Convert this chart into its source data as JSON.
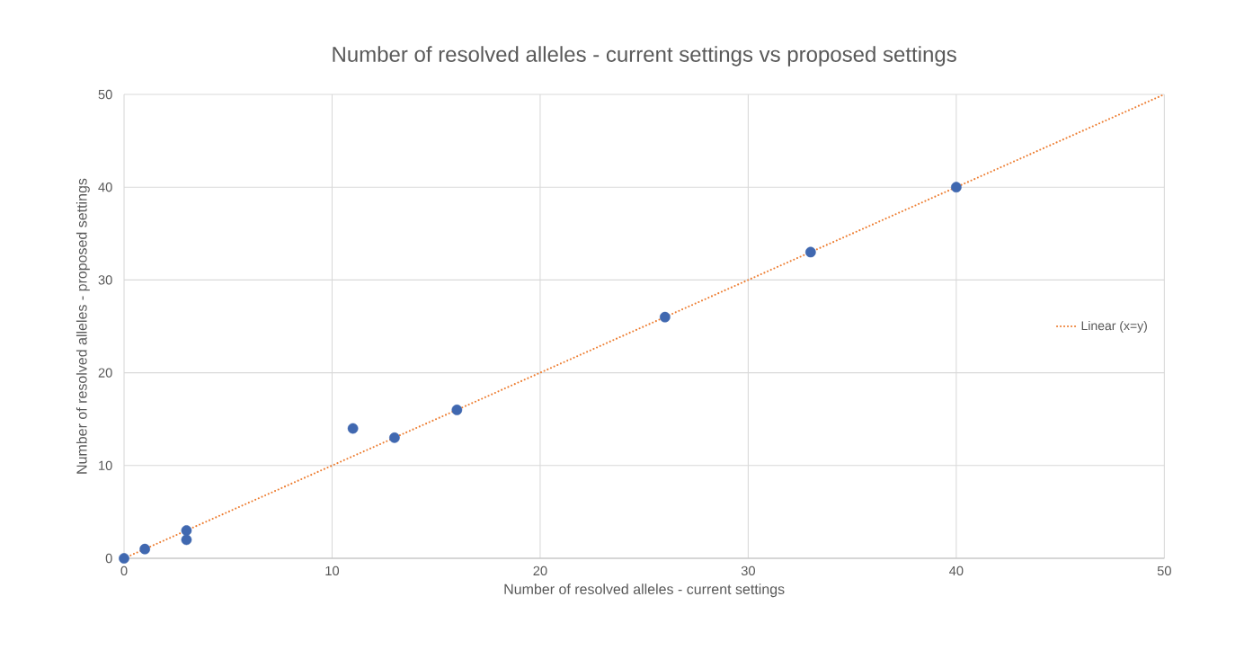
{
  "chart_data": {
    "type": "scatter",
    "title": "Number of resolved alleles - current settings vs proposed settings",
    "xlabel": "Number of resolved alleles - current settings",
    "ylabel": "Number of resolved alleles - proposed settings",
    "series": [
      {
        "color": "#4068b0",
        "marker": "circle",
        "x": [
          0,
          1,
          3,
          3,
          11,
          13,
          16,
          26,
          33,
          40
        ],
        "values": [
          0,
          1,
          3,
          2,
          14,
          13,
          16,
          26,
          33,
          40
        ]
      },
      {
        "type": "line",
        "name": "Linear (x=y)",
        "color": "#ed7d31",
        "line_style": "dotted",
        "marker": "none",
        "x": [
          0,
          50
        ],
        "values": [
          0,
          50
        ]
      }
    ],
    "xlim": [
      0,
      50
    ],
    "ylim": [
      0,
      50
    ],
    "xticks": [
      0,
      10,
      20,
      30,
      40,
      50
    ],
    "yticks": [
      0,
      10,
      20,
      30,
      40,
      50
    ],
    "grid": true,
    "legend": "right"
  }
}
